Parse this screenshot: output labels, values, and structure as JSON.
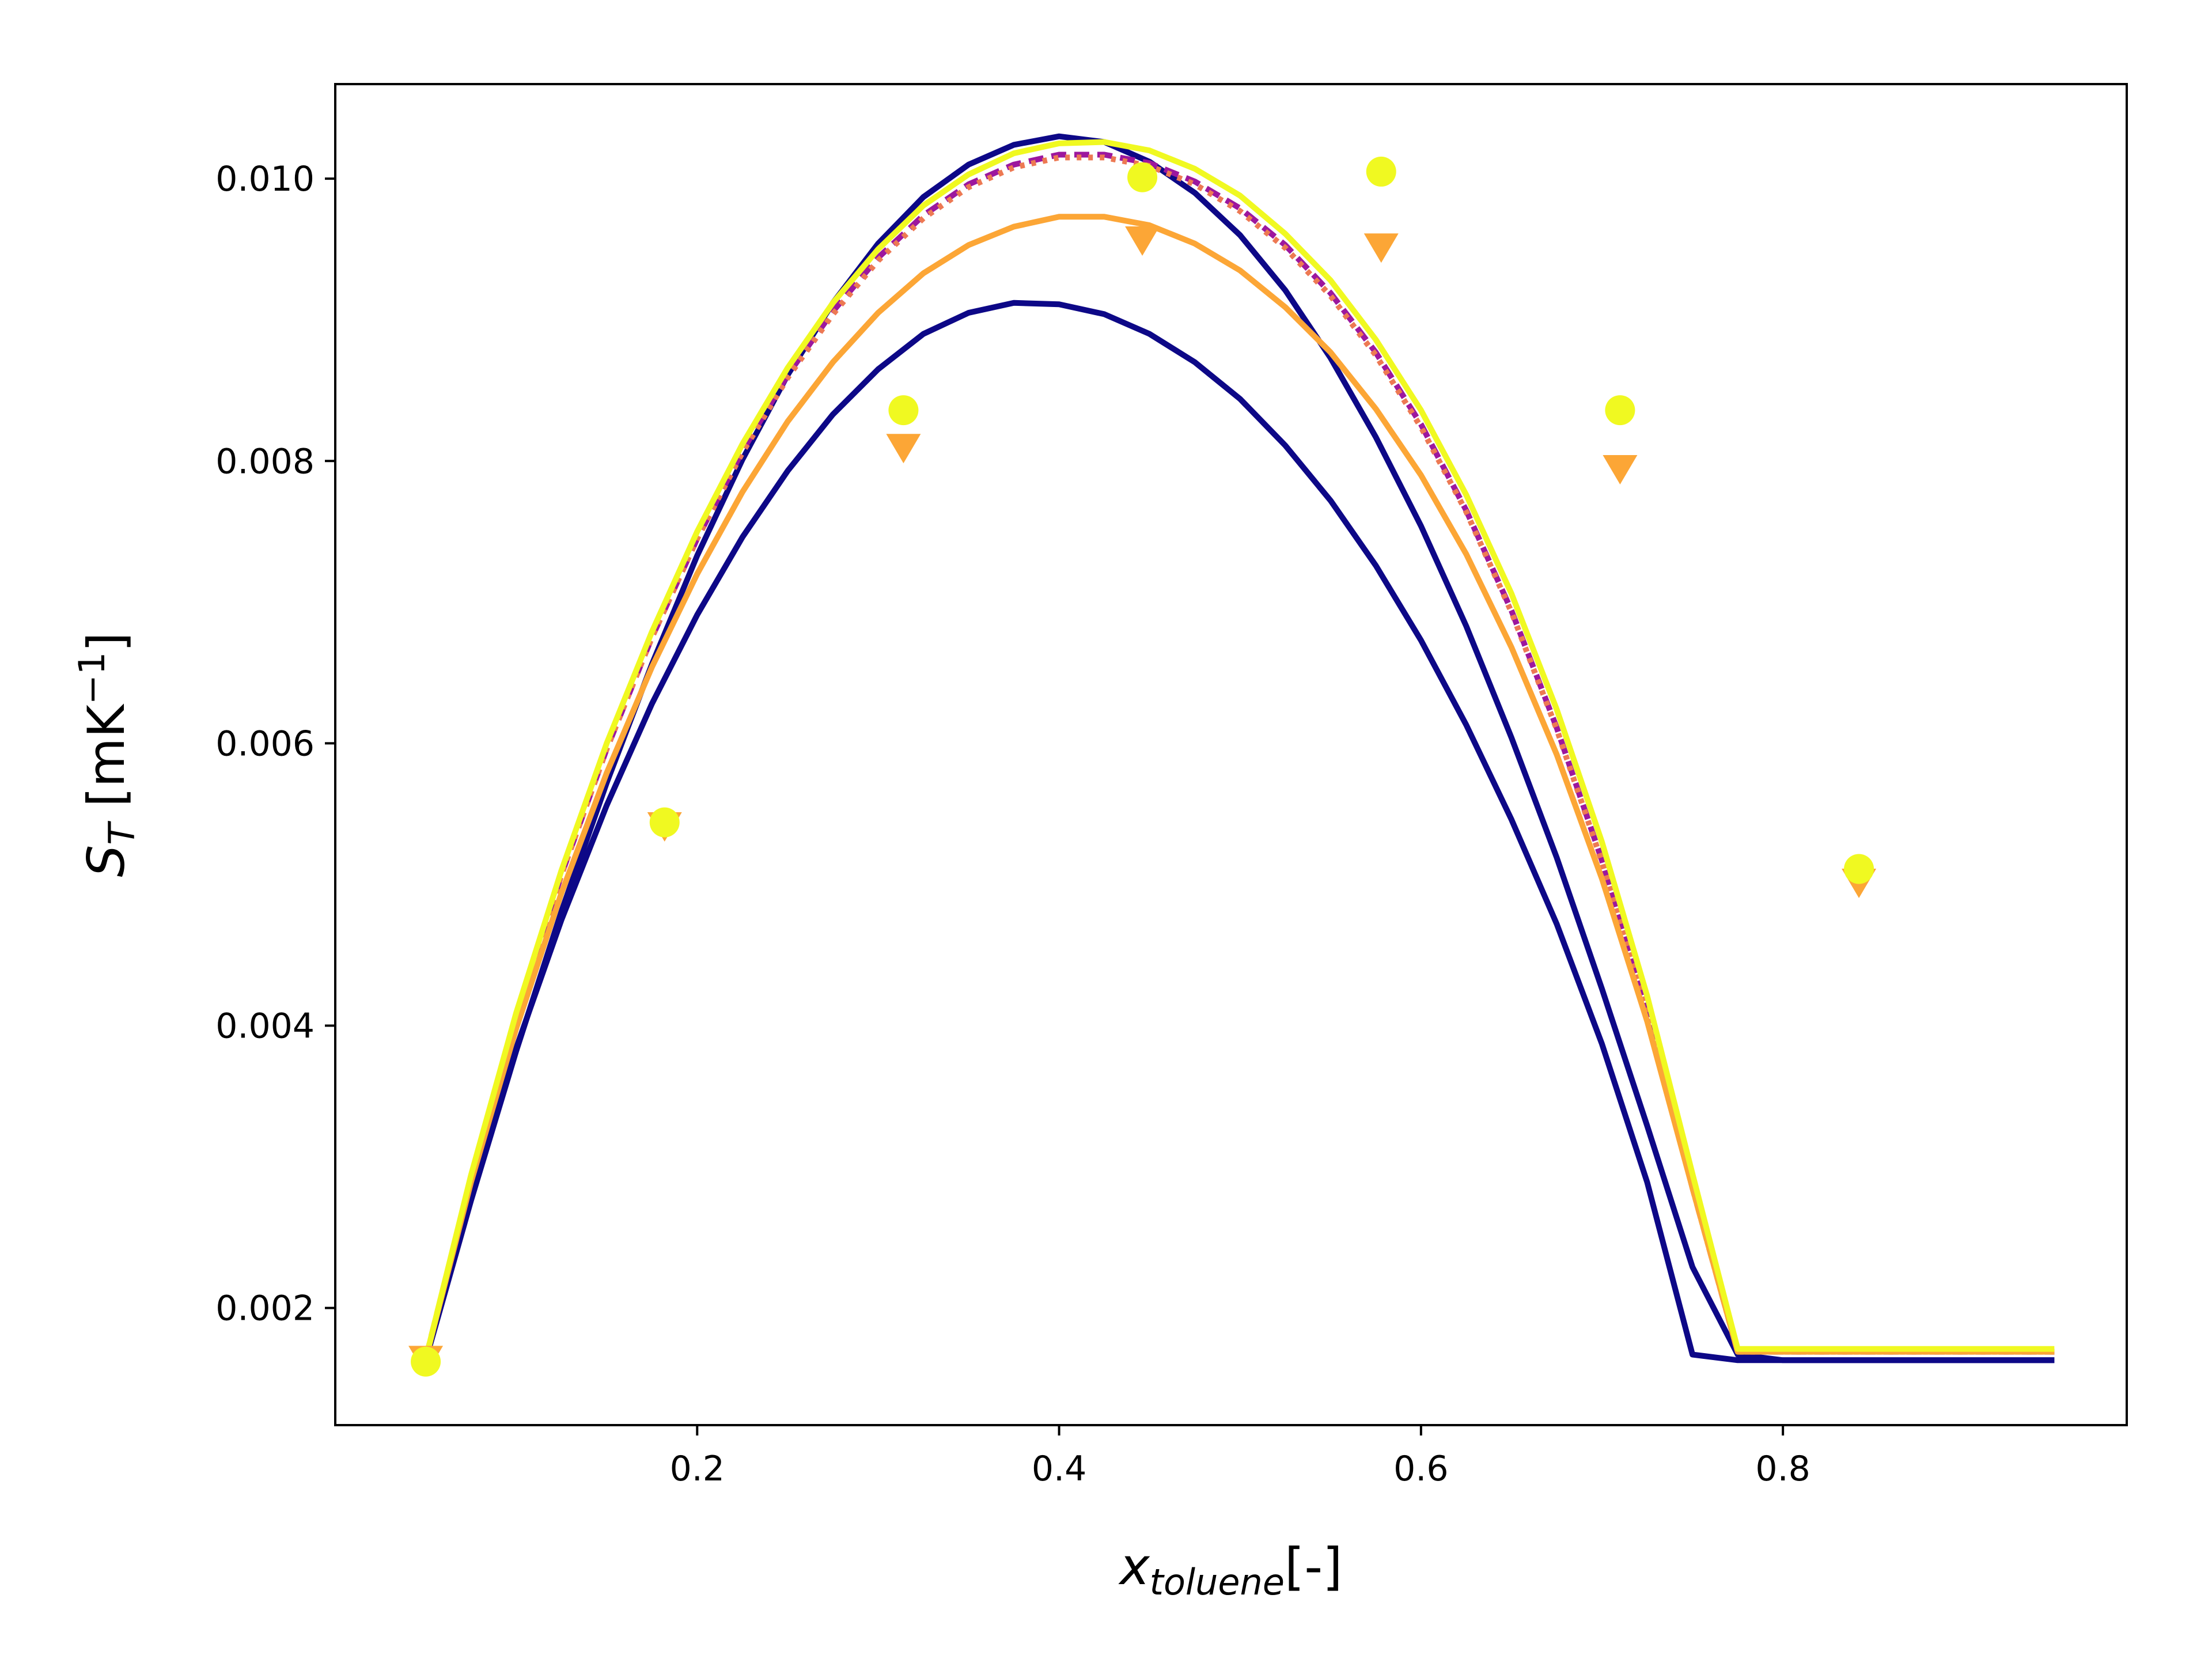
{
  "chart_data": {
    "type": "line",
    "xlabel": {
      "main": "x",
      "sub": "toluene",
      "suffix": "[-]"
    },
    "ylabel": {
      "main": "S",
      "sub": "T",
      "unit_open": " [mK",
      "unit_sup": "−1",
      "unit_close": "]"
    },
    "xlim": [
      0.0,
      0.99
    ],
    "ylim": [
      0.00117,
      0.01067
    ],
    "xticks": [
      0.2,
      0.4,
      0.6,
      0.8
    ],
    "xtick_labels": [
      "0.2",
      "0.4",
      "0.6",
      "0.8"
    ],
    "yticks": [
      0.002,
      0.004,
      0.006,
      0.008,
      0.01
    ],
    "ytick_labels": [
      "0.002",
      "0.004",
      "0.006",
      "0.008",
      "0.010"
    ],
    "grid": false,
    "x": [
      0.05,
      0.075,
      0.1,
      0.125,
      0.15,
      0.175,
      0.2,
      0.225,
      0.25,
      0.275,
      0.3,
      0.325,
      0.35,
      0.375,
      0.4,
      0.425,
      0.45,
      0.475,
      0.5,
      0.525,
      0.55,
      0.575,
      0.6,
      0.625,
      0.65,
      0.675,
      0.7,
      0.725,
      0.75,
      0.775,
      0.8,
      0.825,
      0.85,
      0.875,
      0.9,
      0.925,
      0.95
    ],
    "series": [
      {
        "color": "#0d0887",
        "style": "solid",
        "marker": "none",
        "values": [
          0.00163,
          0.00276,
          0.00382,
          0.00481,
          0.00572,
          0.00656,
          0.00733,
          0.00801,
          0.00861,
          0.00912,
          0.00954,
          0.00987,
          0.0101,
          0.01024,
          0.0103,
          0.01026,
          0.01012,
          0.0099,
          0.0096,
          0.00921,
          0.00873,
          0.00817,
          0.00754,
          0.00683,
          0.00604,
          0.00519,
          0.00426,
          0.00329,
          0.00229,
          0.00167,
          0.00163,
          0.00163,
          0.00163,
          0.00163,
          0.00163,
          0.00163,
          0.00163
        ]
      },
      {
        "color": "#0d0887",
        "style": "solid",
        "marker": "none",
        "values": [
          0.00163,
          0.00281,
          0.00384,
          0.00475,
          0.00556,
          0.00628,
          0.00691,
          0.00746,
          0.00793,
          0.00833,
          0.00865,
          0.0089,
          0.00905,
          0.00912,
          0.00911,
          0.00904,
          0.0089,
          0.0087,
          0.00844,
          0.00811,
          0.00772,
          0.00726,
          0.00673,
          0.00613,
          0.00546,
          0.00472,
          0.00387,
          0.00289,
          0.00167,
          0.00163,
          0.00163,
          0.00163,
          0.00163,
          0.00163,
          0.00163,
          0.00163,
          0.00163
        ]
      },
      {
        "color": "#9c179e",
        "style": "dashed",
        "marker": "none",
        "values": [
          0.00164,
          0.00293,
          0.00407,
          0.00507,
          0.00596,
          0.00675,
          0.00745,
          0.00807,
          0.00861,
          0.00906,
          0.00944,
          0.00974,
          0.00996,
          0.0101,
          0.01017,
          0.01017,
          0.01011,
          0.00998,
          0.00979,
          0.00953,
          0.00919,
          0.00877,
          0.00826,
          0.00765,
          0.00694,
          0.00611,
          0.00517,
          0.00409,
          0.00285,
          0.00169,
          0.00169,
          0.00169,
          0.00169,
          0.00169,
          0.00169,
          0.00169,
          0.00169
        ]
      },
      {
        "color": "#ed7953",
        "style": "dotted",
        "marker": "none",
        "values": [
          0.00164,
          0.00293,
          0.00407,
          0.00507,
          0.00596,
          0.00675,
          0.00745,
          0.00806,
          0.00859,
          0.00904,
          0.00942,
          0.00972,
          0.00994,
          0.01008,
          0.01015,
          0.01015,
          0.01009,
          0.00996,
          0.00977,
          0.00951,
          0.00917,
          0.00875,
          0.00824,
          0.00764,
          0.00693,
          0.0061,
          0.00516,
          0.00408,
          0.00285,
          0.00169,
          0.00169,
          0.00169,
          0.00169,
          0.00169,
          0.00169,
          0.00169,
          0.00169
        ]
      },
      {
        "color": "#fca636",
        "style": "solid",
        "marker": "triangle-down",
        "values": [
          0.00164,
          0.00289,
          0.00398,
          0.00494,
          0.00579,
          0.00654,
          0.0072,
          0.00778,
          0.00828,
          0.0087,
          0.00905,
          0.00933,
          0.00953,
          0.00966,
          0.00973,
          0.00973,
          0.00967,
          0.00954,
          0.00935,
          0.00909,
          0.00877,
          0.00837,
          0.0079,
          0.00734,
          0.00668,
          0.00592,
          0.00504,
          0.00403,
          0.00285,
          0.00169,
          0.00169,
          0.00169,
          0.00169,
          0.00169,
          0.00169,
          0.00169,
          0.00169
        ]
      },
      {
        "color": "#f0f921",
        "style": "solid",
        "marker": "circle",
        "values": [
          0.00164,
          0.00294,
          0.00409,
          0.0051,
          0.006,
          0.00679,
          0.0075,
          0.00812,
          0.00866,
          0.00912,
          0.0095,
          0.00981,
          0.01003,
          0.01018,
          0.01025,
          0.01026,
          0.0102,
          0.01007,
          0.00988,
          0.00961,
          0.00928,
          0.00886,
          0.00836,
          0.00776,
          0.00706,
          0.00624,
          0.0053,
          0.00421,
          0.00295,
          0.00171,
          0.00171,
          0.00171,
          0.00171,
          0.00171,
          0.00171,
          0.00171,
          0.00171
        ]
      }
    ],
    "marker_x": [
      0.05,
      0.182,
      0.314,
      0.446,
      0.578,
      0.71,
      0.842
    ],
    "series_markers": [
      {
        "color": "#fca636",
        "marker": "triangle-down",
        "values": [
          0.00164,
          0.00542,
          0.0081,
          0.00957,
          0.00952,
          0.00795,
          0.00502
        ]
      },
      {
        "color": "#f0f921",
        "marker": "circle",
        "values": [
          0.00162,
          0.00544,
          0.00836,
          0.01001,
          0.01005,
          0.00836,
          0.00511
        ]
      }
    ]
  }
}
